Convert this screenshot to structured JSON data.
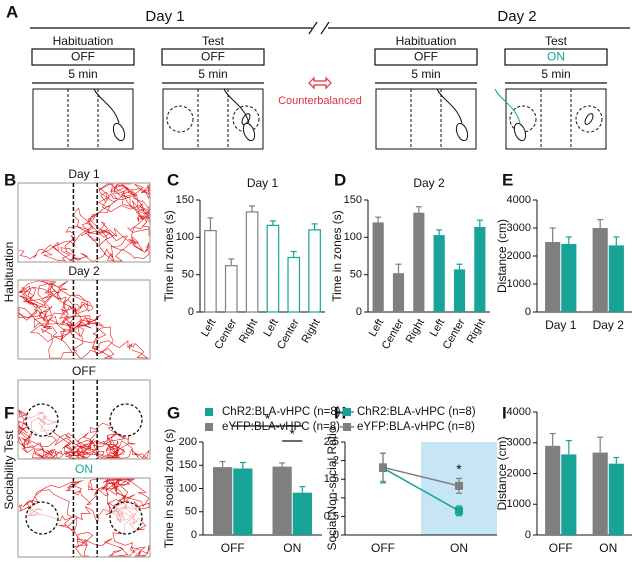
{
  "panel_labels": [
    "A",
    "B",
    "C",
    "D",
    "E",
    "F",
    "G",
    "H",
    "I"
  ],
  "schematic": {
    "days": [
      "Day 1",
      "Day 2"
    ],
    "sessions": [
      {
        "phase": "Habituation",
        "light": "OFF",
        "duration": "5 min",
        "light_color": "#111111"
      },
      {
        "phase": "Test",
        "light": "OFF",
        "duration": "5 min",
        "light_color": "#111111"
      },
      {
        "phase": "Habituation",
        "light": "OFF",
        "duration": "5 min",
        "light_color": "#111111"
      },
      {
        "phase": "Test",
        "light": "ON",
        "duration": "5 min",
        "light_color": "#17a398"
      }
    ],
    "note": "Counterbalanced"
  },
  "tracks": {
    "habituation": {
      "label": "Habituation",
      "maps": [
        "Day 1",
        "Day 2"
      ]
    },
    "sociability": {
      "label": "Sociability Test",
      "maps": [
        "OFF",
        "ON"
      ]
    }
  },
  "chart_data": [
    {
      "type": "bar",
      "title": "Day 1",
      "y_label": "Time in zones (s)",
      "categories": [
        "Left",
        "Center",
        "Right",
        "Left",
        "Center",
        "Right"
      ],
      "values": [
        109,
        62,
        134,
        116,
        73,
        110
      ],
      "errors": [
        17,
        9,
        8,
        6,
        8,
        8
      ],
      "colors": [
        "#808080",
        "#808080",
        "#808080",
        "#17a398",
        "#17a398",
        "#17a398"
      ],
      "bar_style": "outline",
      "ylim": [
        0,
        150
      ],
      "yticks": [
        0,
        50,
        100,
        150
      ]
    },
    {
      "type": "bar",
      "title": "Day 2",
      "y_label": "Time in zones (s)",
      "categories": [
        "Left",
        "Center",
        "Right",
        "Left",
        "Center",
        "Right"
      ],
      "values": [
        120,
        52,
        133,
        103,
        57,
        114
      ],
      "errors": [
        7,
        12,
        8,
        7,
        7,
        9
      ],
      "colors": [
        "#7f7f7f",
        "#7f7f7f",
        "#7f7f7f",
        "#17a398",
        "#17a398",
        "#17a398"
      ],
      "bar_style": "filled",
      "ylim": [
        0,
        150
      ],
      "yticks": [
        0,
        50,
        100,
        150
      ]
    },
    {
      "type": "bar",
      "y_label": "Distance (cm)",
      "categories": [
        "Day 1",
        "Day 2"
      ],
      "series": [
        {
          "color": "#17a398",
          "values": [
            2430,
            2380
          ],
          "errors": [
            250,
            300
          ]
        },
        {
          "color": "#7f7f7f",
          "values": [
            2500,
            3000
          ],
          "errors": [
            500,
            300
          ]
        }
      ],
      "ylim": [
        0,
        4000
      ],
      "yticks": [
        0,
        1000,
        2000,
        3000,
        4000
      ]
    },
    {
      "type": "bar",
      "y_label": "Time in social zone (s)",
      "categories": [
        "OFF",
        "ON"
      ],
      "series": [
        {
          "name": "ChR2:BLA-vHPC (n=8)",
          "color": "#17a398",
          "values": [
            143,
            91
          ],
          "errors": [
            13,
            13
          ]
        },
        {
          "name": "eYFP:BLA-vHPC (n=8)",
          "color": "#7f7f7f",
          "values": [
            146,
            147
          ],
          "errors": [
            12,
            8
          ]
        }
      ],
      "annotations": [
        {
          "text": "*"
        },
        {
          "text": "*"
        }
      ],
      "ylim": [
        0,
        200
      ],
      "yticks": [
        0,
        50,
        100,
        150,
        200
      ]
    },
    {
      "type": "line",
      "y_label": "Social:Non-social Ratio",
      "categories": [
        "OFF",
        "ON"
      ],
      "series": [
        {
          "name": "ChR2:BLA-vHPC (n=8)",
          "color": "#17a398",
          "values": [
            1.8,
            0.65
          ],
          "errors": [
            0.4,
            0.13
          ]
        },
        {
          "name": "eYFP:BLA-vHPC (n=8)",
          "color": "#7f7f7f",
          "values": [
            1.82,
            1.32
          ],
          "errors": [
            0.38,
            0.2
          ]
        }
      ],
      "annotations": [
        {
          "text": "*"
        }
      ],
      "highlight": {
        "category": 1,
        "color": "#c6e6f6"
      },
      "ylim": [
        0,
        2.5
      ],
      "yticks": [
        0,
        0.5,
        1,
        1.5,
        2,
        2.5
      ]
    },
    {
      "type": "bar",
      "y_label": "Distance (cm)",
      "categories": [
        "OFF",
        "ON"
      ],
      "series": [
        {
          "color": "#17a398",
          "values": [
            2620,
            2320
          ],
          "errors": [
            450,
            200
          ]
        },
        {
          "color": "#7f7f7f",
          "values": [
            2900,
            2680
          ],
          "errors": [
            400,
            500
          ]
        }
      ],
      "ylim": [
        0,
        4000
      ],
      "yticks": [
        0,
        1000,
        2000,
        3000,
        4000
      ]
    }
  ]
}
